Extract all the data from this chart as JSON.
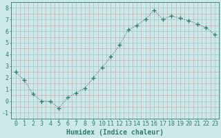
{
  "x": [
    0,
    1,
    2,
    3,
    4,
    5,
    6,
    7,
    8,
    9,
    10,
    11,
    12,
    13,
    14,
    15,
    16,
    17,
    18,
    19,
    20,
    21,
    22,
    23
  ],
  "y": [
    2.5,
    1.8,
    0.6,
    0.0,
    0.0,
    -0.6,
    0.3,
    0.7,
    1.1,
    2.0,
    2.9,
    3.8,
    4.8,
    6.1,
    6.5,
    7.0,
    7.8,
    7.0,
    7.3,
    7.1,
    6.9,
    6.6,
    6.3,
    5.7
  ],
  "line_color": "#2e7d6e",
  "marker": "+",
  "marker_size": 4,
  "bg_color": "#cde8e8",
  "grid_major_color": "#aacfcf",
  "grid_minor_color": "#d4a8a8",
  "xlabel": "Humidex (Indice chaleur)",
  "xlabel_fontsize": 7,
  "tick_fontsize": 6,
  "xlim": [
    -0.5,
    23.5
  ],
  "ylim": [
    -1.5,
    8.5
  ],
  "yticks": [
    -1,
    0,
    1,
    2,
    3,
    4,
    5,
    6,
    7,
    8
  ],
  "xticks": [
    0,
    1,
    2,
    3,
    4,
    5,
    6,
    7,
    8,
    9,
    10,
    11,
    12,
    13,
    14,
    15,
    16,
    17,
    18,
    19,
    20,
    21,
    22,
    23
  ]
}
